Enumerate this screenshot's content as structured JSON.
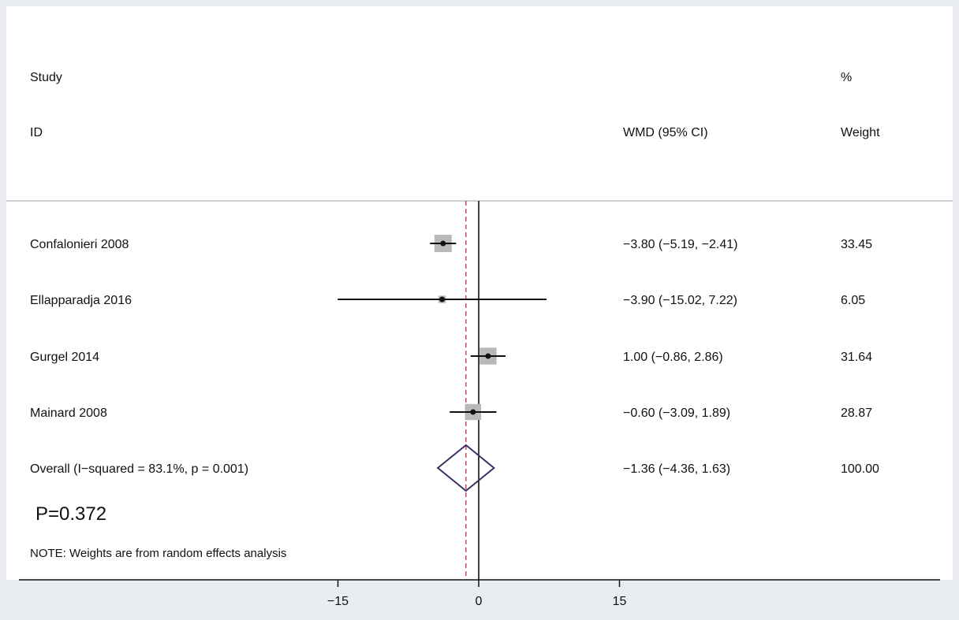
{
  "header": {
    "study_label": "Study",
    "id_label": "ID",
    "effect_label": "WMD (95% CI)",
    "pct_label": "%",
    "weight_label": "Weight"
  },
  "chart_data": {
    "type": "forest",
    "x_ticks": [
      -15,
      0,
      15
    ],
    "x_tick_labels": [
      "−15",
      "0",
      "15"
    ],
    "xlim": [
      -15,
      15
    ],
    "null_line": 0,
    "studies": [
      {
        "id": "Confalonieri 2008",
        "wmd": -3.8,
        "lo": -5.19,
        "hi": -2.41,
        "weight": 33.45,
        "ci_text": "−3.80 (−5.19, −2.41)",
        "weight_text": "33.45"
      },
      {
        "id": "Ellapparadja 2016",
        "wmd": -3.9,
        "lo": -15.02,
        "hi": 7.22,
        "weight": 6.05,
        "ci_text": "−3.90 (−15.02, 7.22)",
        "weight_text": "6.05"
      },
      {
        "id": "Gurgel 2014",
        "wmd": 1.0,
        "lo": -0.86,
        "hi": 2.86,
        "weight": 31.64,
        "ci_text": "1.00 (−0.86, 2.86)",
        "weight_text": "31.64"
      },
      {
        "id": "Mainard 2008",
        "wmd": -0.6,
        "lo": -3.09,
        "hi": 1.89,
        "weight": 28.87,
        "ci_text": "−0.60 (−3.09, 1.89)",
        "weight_text": "28.87"
      }
    ],
    "overall": {
      "label": "Overall  (I−squared = 83.1%, p = 0.001)",
      "wmd": -1.36,
      "lo": -4.36,
      "hi": 1.63,
      "ci_text": "−1.36 (−4.36, 1.63)",
      "weight_text": "100.00"
    },
    "p_value_text": "P=0.372",
    "note": "NOTE: Weights are from random effects analysis",
    "colors": {
      "box": "#b9b9b9",
      "diamond": "#3b2f63",
      "overall_line": "#b04a5a",
      "axis": "#111111"
    }
  }
}
